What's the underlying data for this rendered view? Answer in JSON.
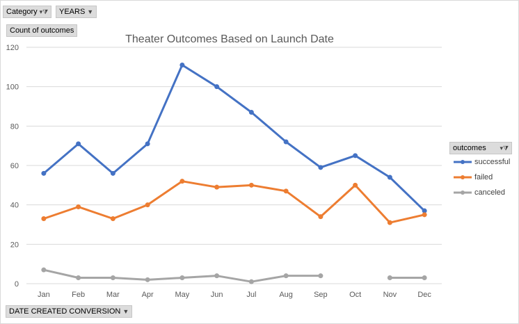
{
  "pivot": {
    "category_label": "Category",
    "years_label": "YEARS",
    "value_label": "Count of outcomes",
    "axis_field_label": "DATE CREATED CONVERSION",
    "legend_field_label": "outcomes"
  },
  "chart_data": {
    "type": "line",
    "title": "Theater Outcomes Based on Launch Date",
    "xlabel": "",
    "ylabel": "",
    "ylim": [
      0,
      120
    ],
    "yticks": [
      0,
      20,
      40,
      60,
      80,
      100,
      120
    ],
    "grid": true,
    "legend_position": "right",
    "categories": [
      "Jan",
      "Feb",
      "Mar",
      "Apr",
      "May",
      "Jun",
      "Jul",
      "Aug",
      "Sep",
      "Oct",
      "Nov",
      "Dec"
    ],
    "series": [
      {
        "name": "successful",
        "color": "#4472c4",
        "values": [
          56,
          71,
          56,
          71,
          111,
          100,
          87,
          72,
          59,
          65,
          54,
          37
        ]
      },
      {
        "name": "failed",
        "color": "#ed7d31",
        "values": [
          33,
          39,
          33,
          40,
          52,
          49,
          50,
          47,
          34,
          50,
          31,
          35
        ]
      },
      {
        "name": "canceled",
        "color": "#a5a5a5",
        "values": [
          7,
          3,
          3,
          2,
          3,
          4,
          1,
          4,
          4,
          null,
          3,
          3
        ]
      }
    ]
  }
}
